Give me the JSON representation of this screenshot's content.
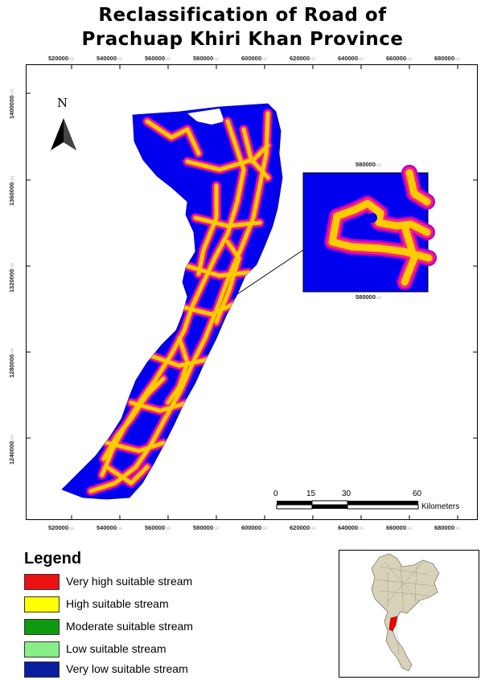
{
  "title": {
    "line1": "Reclassification of Road of",
    "line2": "Prachuap Khiri Khan Province"
  },
  "axes": {
    "x_ticks": [
      "520000",
      "540000",
      "560000",
      "580000",
      "600000",
      "620000",
      "640000",
      "660000",
      "680000"
    ],
    "y_ticks": [
      "1400000",
      "1360000",
      "1320000",
      "1280000",
      "1240000"
    ]
  },
  "north_arrow": {
    "label": "N",
    "icon": "north-arrow-icon"
  },
  "zoom_inset": {
    "x_tick": "580000"
  },
  "scale_bar": {
    "labels": [
      "0",
      "15",
      "30",
      "60"
    ],
    "unit": "Kilometers"
  },
  "legend": {
    "title": "Legend",
    "items": [
      {
        "label": "Very high suitable stream",
        "color": "#ee1111"
      },
      {
        "label": "High suitable stream",
        "color": "#ffff00"
      },
      {
        "label": "Moderate suitable stream",
        "color": "#109a10"
      },
      {
        "label": "Low suitable stream",
        "color": "#88ee88"
      },
      {
        "label": "Very low suitable stream",
        "color": "#0a1ea0"
      }
    ]
  },
  "colors": {
    "province_fill": "#0000ee",
    "road_core": "#ffcc00",
    "road_edge": "#ff2277",
    "road_outer": "#aa00cc",
    "locator_highlight": "#ee0000"
  }
}
